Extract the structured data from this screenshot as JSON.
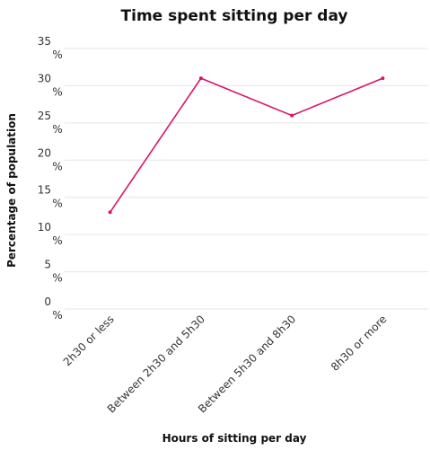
{
  "chart_data": {
    "type": "line",
    "title": "Time spent sitting per day",
    "xlabel": "Hours of sitting per day",
    "ylabel": "Percentage of population",
    "categories": [
      "2h30 or less",
      "Between 2h30 and 5h30",
      "Between 5h30 and 8h30",
      "8h30 or more"
    ],
    "series": [
      {
        "values": [
          13,
          31,
          26,
          31
        ]
      }
    ],
    "ylim": [
      0,
      35
    ],
    "yticks": [
      {
        "value": 0,
        "num": "0",
        "unit": "%"
      },
      {
        "value": 5,
        "num": "5",
        "unit": "%"
      },
      {
        "value": 10,
        "num": "10",
        "unit": "%"
      },
      {
        "value": 15,
        "num": "15",
        "unit": "%"
      },
      {
        "value": 20,
        "num": "20",
        "unit": "%"
      },
      {
        "value": 25,
        "num": "25",
        "unit": "%"
      },
      {
        "value": 30,
        "num": "30",
        "unit": "%"
      },
      {
        "value": 35,
        "num": "35",
        "unit": "%"
      }
    ],
    "grid": true,
    "line_color": "#d6166c"
  }
}
